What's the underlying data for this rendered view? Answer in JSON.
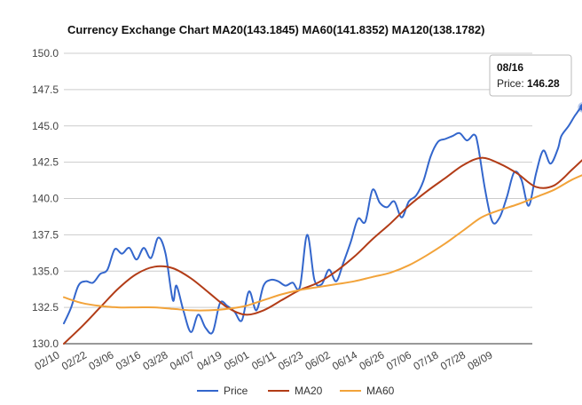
{
  "chart_data": {
    "type": "line",
    "title": "Currency Exchange Chart MA20(143.1845) MA60(141.8352) MA120(138.1782)",
    "xlabel": "",
    "ylabel": "",
    "ylim": [
      130.0,
      150.0
    ],
    "y_ticks": [
      "150.0",
      "147.5",
      "145.0",
      "142.5",
      "140.0",
      "137.5",
      "135.0",
      "132.5",
      "130.0"
    ],
    "x_tick_labels": [
      "02/10",
      "02/22",
      "03/06",
      "03/16",
      "03/28",
      "04/07",
      "04/19",
      "05/01",
      "05/11",
      "05/23",
      "06/02",
      "06/14",
      "06/26",
      "07/06",
      "07/18",
      "07/28",
      "08/09"
    ],
    "grid": true,
    "legend_position": "bottom",
    "n_points": 130,
    "series": [
      {
        "name": "Price",
        "color": "#3366cc",
        "points": [
          [
            0,
            131.4
          ],
          [
            2,
            132.5
          ],
          [
            4,
            134.0
          ],
          [
            6,
            134.3
          ],
          [
            8,
            134.2
          ],
          [
            10,
            134.8
          ],
          [
            12,
            135.1
          ],
          [
            14,
            136.5
          ],
          [
            16,
            136.2
          ],
          [
            18,
            136.6
          ],
          [
            20,
            135.8
          ],
          [
            22,
            136.6
          ],
          [
            24,
            135.9
          ],
          [
            26,
            137.3
          ],
          [
            28,
            136.2
          ],
          [
            30,
            133.0
          ],
          [
            31,
            134.0
          ],
          [
            33,
            132.2
          ],
          [
            35,
            130.8
          ],
          [
            37,
            132.0
          ],
          [
            39,
            131.1
          ],
          [
            41,
            130.8
          ],
          [
            43,
            132.8
          ],
          [
            45,
            132.6
          ],
          [
            47,
            132.2
          ],
          [
            49,
            131.6
          ],
          [
            51,
            133.6
          ],
          [
            53,
            132.3
          ],
          [
            55,
            134.0
          ],
          [
            57,
            134.4
          ],
          [
            59,
            134.3
          ],
          [
            61,
            134.0
          ],
          [
            63,
            134.2
          ],
          [
            65,
            133.9
          ],
          [
            67,
            137.5
          ],
          [
            69,
            134.4
          ],
          [
            71,
            134.1
          ],
          [
            73,
            135.1
          ],
          [
            75,
            134.3
          ],
          [
            77,
            135.6
          ],
          [
            79,
            137.0
          ],
          [
            81,
            138.6
          ],
          [
            83,
            138.4
          ],
          [
            85,
            140.6
          ],
          [
            87,
            139.7
          ],
          [
            89,
            139.4
          ],
          [
            91,
            139.8
          ],
          [
            93,
            138.7
          ],
          [
            95,
            139.8
          ],
          [
            97,
            140.2
          ],
          [
            99,
            141.2
          ],
          [
            101,
            142.9
          ],
          [
            103,
            143.9
          ],
          [
            105,
            144.1
          ],
          [
            107,
            144.3
          ],
          [
            109,
            144.5
          ],
          [
            111,
            144.0
          ],
          [
            113,
            144.4
          ],
          [
            114,
            143.7
          ],
          [
            116,
            140.6
          ],
          [
            118,
            138.4
          ],
          [
            120,
            138.7
          ],
          [
            122,
            140.1
          ],
          [
            124,
            141.8
          ],
          [
            126,
            141.3
          ],
          [
            128,
            139.5
          ],
          [
            130,
            141.7
          ],
          [
            132,
            143.3
          ],
          [
            134,
            142.4
          ],
          [
            136,
            143.4
          ],
          [
            137,
            144.3
          ],
          [
            139,
            145.0
          ],
          [
            141,
            145.8
          ],
          [
            143,
            146.28
          ],
          [
            145,
            145.3
          ]
        ]
      },
      {
        "name": "MA20",
        "color": "#b23c17",
        "points": [
          [
            0,
            130.0
          ],
          [
            5,
            131.2
          ],
          [
            10,
            132.5
          ],
          [
            15,
            133.8
          ],
          [
            20,
            134.8
          ],
          [
            25,
            135.3
          ],
          [
            30,
            135.2
          ],
          [
            35,
            134.5
          ],
          [
            40,
            133.5
          ],
          [
            45,
            132.5
          ],
          [
            50,
            132.0
          ],
          [
            55,
            132.3
          ],
          [
            60,
            133.0
          ],
          [
            65,
            133.7
          ],
          [
            70,
            134.2
          ],
          [
            75,
            135.0
          ],
          [
            80,
            136.0
          ],
          [
            85,
            137.2
          ],
          [
            90,
            138.3
          ],
          [
            95,
            139.5
          ],
          [
            100,
            140.5
          ],
          [
            105,
            141.4
          ],
          [
            110,
            142.3
          ],
          [
            115,
            142.8
          ],
          [
            120,
            142.4
          ],
          [
            125,
            141.7
          ],
          [
            130,
            140.8
          ],
          [
            135,
            140.9
          ],
          [
            140,
            142.0
          ],
          [
            145,
            143.18
          ]
        ]
      },
      {
        "name": "MA60",
        "color": "#f2a33a",
        "points": [
          [
            0,
            133.2
          ],
          [
            5,
            132.8
          ],
          [
            10,
            132.6
          ],
          [
            15,
            132.5
          ],
          [
            20,
            132.5
          ],
          [
            25,
            132.5
          ],
          [
            30,
            132.4
          ],
          [
            35,
            132.3
          ],
          [
            40,
            132.3
          ],
          [
            45,
            132.4
          ],
          [
            50,
            132.6
          ],
          [
            55,
            133.0
          ],
          [
            60,
            133.4
          ],
          [
            65,
            133.7
          ],
          [
            70,
            133.9
          ],
          [
            75,
            134.1
          ],
          [
            80,
            134.3
          ],
          [
            85,
            134.6
          ],
          [
            90,
            134.9
          ],
          [
            95,
            135.4
          ],
          [
            100,
            136.1
          ],
          [
            105,
            136.9
          ],
          [
            110,
            137.8
          ],
          [
            115,
            138.7
          ],
          [
            120,
            139.2
          ],
          [
            125,
            139.6
          ],
          [
            130,
            140.1
          ],
          [
            135,
            140.6
          ],
          [
            140,
            141.3
          ],
          [
            145,
            141.84
          ]
        ]
      }
    ],
    "tooltip": {
      "date": "08/16",
      "label": "Price:",
      "value": "146.28",
      "index": 143
    }
  }
}
